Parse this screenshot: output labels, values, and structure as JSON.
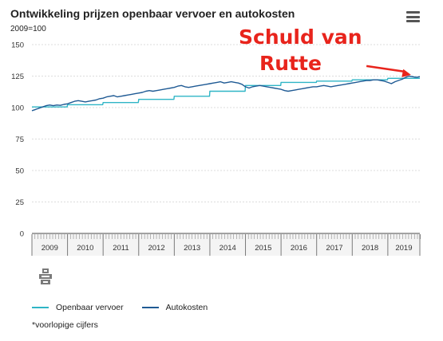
{
  "header": {
    "title": "Ontwikkeling prijzen openbaar vervoer en autokosten",
    "subtitle": "2009=100",
    "menu_icon": "hamburger-menu-icon"
  },
  "annotation": {
    "line1": "Schuld van",
    "line2": "Rutte",
    "color": "#e8241c"
  },
  "footnote": "*voorlopige cijfers",
  "chart_data": {
    "type": "line",
    "title": "Ontwikkeling prijzen openbaar vervoer en autokosten",
    "subtitle": "2009=100",
    "ylim": [
      0,
      150
    ],
    "yticks": [
      0,
      25,
      50,
      75,
      100,
      125,
      150
    ],
    "xlim": [
      2009.0,
      2019.9
    ],
    "categories": [
      "2009",
      "2010",
      "2011",
      "2012",
      "2013",
      "2014",
      "2015",
      "2016",
      "2017",
      "2018",
      "2019"
    ],
    "grid": true,
    "legend_position": "bottom-left",
    "series": [
      {
        "name": "Openbaar vervoer",
        "color": "#2fb5c6",
        "x": [
          2009.0,
          2009.99,
          2010.0,
          2010.99,
          2011.0,
          2011.99,
          2012.0,
          2012.99,
          2013.0,
          2013.99,
          2014.0,
          2014.99,
          2015.0,
          2015.99,
          2016.0,
          2016.99,
          2017.0,
          2017.99,
          2018.0,
          2018.99,
          2019.0,
          2019.9
        ],
        "y": [
          100.5,
          100.5,
          102.3,
          102.3,
          104.0,
          104.0,
          106.5,
          106.5,
          109.0,
          109.0,
          113.0,
          113.0,
          117.5,
          117.5,
          120.0,
          120.0,
          121.0,
          121.0,
          122.0,
          122.0,
          123.2,
          123.2
        ]
      },
      {
        "name": "Autokosten",
        "color": "#1f5a94",
        "x": [
          2009.0,
          2009.1,
          2009.2,
          2009.3,
          2009.4,
          2009.5,
          2009.6,
          2009.7,
          2009.8,
          2009.9,
          2010.0,
          2010.1,
          2010.2,
          2010.3,
          2010.4,
          2010.5,
          2010.6,
          2010.7,
          2010.8,
          2010.9,
          2011.0,
          2011.1,
          2011.2,
          2011.3,
          2011.4,
          2011.5,
          2011.6,
          2011.7,
          2011.8,
          2011.9,
          2012.0,
          2012.1,
          2012.2,
          2012.3,
          2012.4,
          2012.5,
          2012.6,
          2012.7,
          2012.8,
          2012.9,
          2013.0,
          2013.1,
          2013.2,
          2013.3,
          2013.4,
          2013.5,
          2013.6,
          2013.7,
          2013.8,
          2013.9,
          2014.0,
          2014.1,
          2014.2,
          2014.3,
          2014.4,
          2014.5,
          2014.6,
          2014.7,
          2014.8,
          2014.9,
          2015.0,
          2015.1,
          2015.2,
          2015.3,
          2015.4,
          2015.5,
          2015.6,
          2015.7,
          2015.8,
          2015.9,
          2016.0,
          2016.1,
          2016.2,
          2016.3,
          2016.4,
          2016.5,
          2016.6,
          2016.7,
          2016.8,
          2016.9,
          2017.0,
          2017.1,
          2017.2,
          2017.3,
          2017.4,
          2017.5,
          2017.6,
          2017.7,
          2017.8,
          2017.9,
          2018.0,
          2018.1,
          2018.2,
          2018.3,
          2018.4,
          2018.5,
          2018.6,
          2018.7,
          2018.8,
          2018.9,
          2019.0,
          2019.1,
          2019.2,
          2019.3,
          2019.4,
          2019.5,
          2019.6,
          2019.7,
          2019.8,
          2019.9
        ],
        "y": [
          97.5,
          98.5,
          99.5,
          100.5,
          101.5,
          102.0,
          101.5,
          102.0,
          101.8,
          102.5,
          103.0,
          104.0,
          105.0,
          105.5,
          105.0,
          104.5,
          105.0,
          105.5,
          106.0,
          107.0,
          107.5,
          108.5,
          109.0,
          109.5,
          108.5,
          109.0,
          109.5,
          110.0,
          110.5,
          111.0,
          111.5,
          112.0,
          113.0,
          113.5,
          113.0,
          113.5,
          114.0,
          114.5,
          115.0,
          115.5,
          116.0,
          117.0,
          117.5,
          116.5,
          116.0,
          116.5,
          117.0,
          117.5,
          118.0,
          118.5,
          119.0,
          119.5,
          120.0,
          120.5,
          119.5,
          120.0,
          120.5,
          120.0,
          119.5,
          118.5,
          116.5,
          115.5,
          116.5,
          117.0,
          117.5,
          117.0,
          116.5,
          116.0,
          115.5,
          115.0,
          114.5,
          113.5,
          113.0,
          113.5,
          114.0,
          114.5,
          115.0,
          115.5,
          116.0,
          116.5,
          116.5,
          117.0,
          117.5,
          117.0,
          116.5,
          117.0,
          117.5,
          118.0,
          118.5,
          119.0,
          119.5,
          120.0,
          120.5,
          121.0,
          121.5,
          121.5,
          122.0,
          122.0,
          121.5,
          121.0,
          120.0,
          119.0,
          120.5,
          121.5,
          122.5,
          124.0,
          125.0,
          124.5,
          124.0,
          124.5
        ]
      }
    ],
    "annotation_arrow": {
      "from": {
        "x": 2018.4,
        "y": 133
      },
      "to": {
        "x": 2019.65,
        "y": 126
      }
    }
  }
}
